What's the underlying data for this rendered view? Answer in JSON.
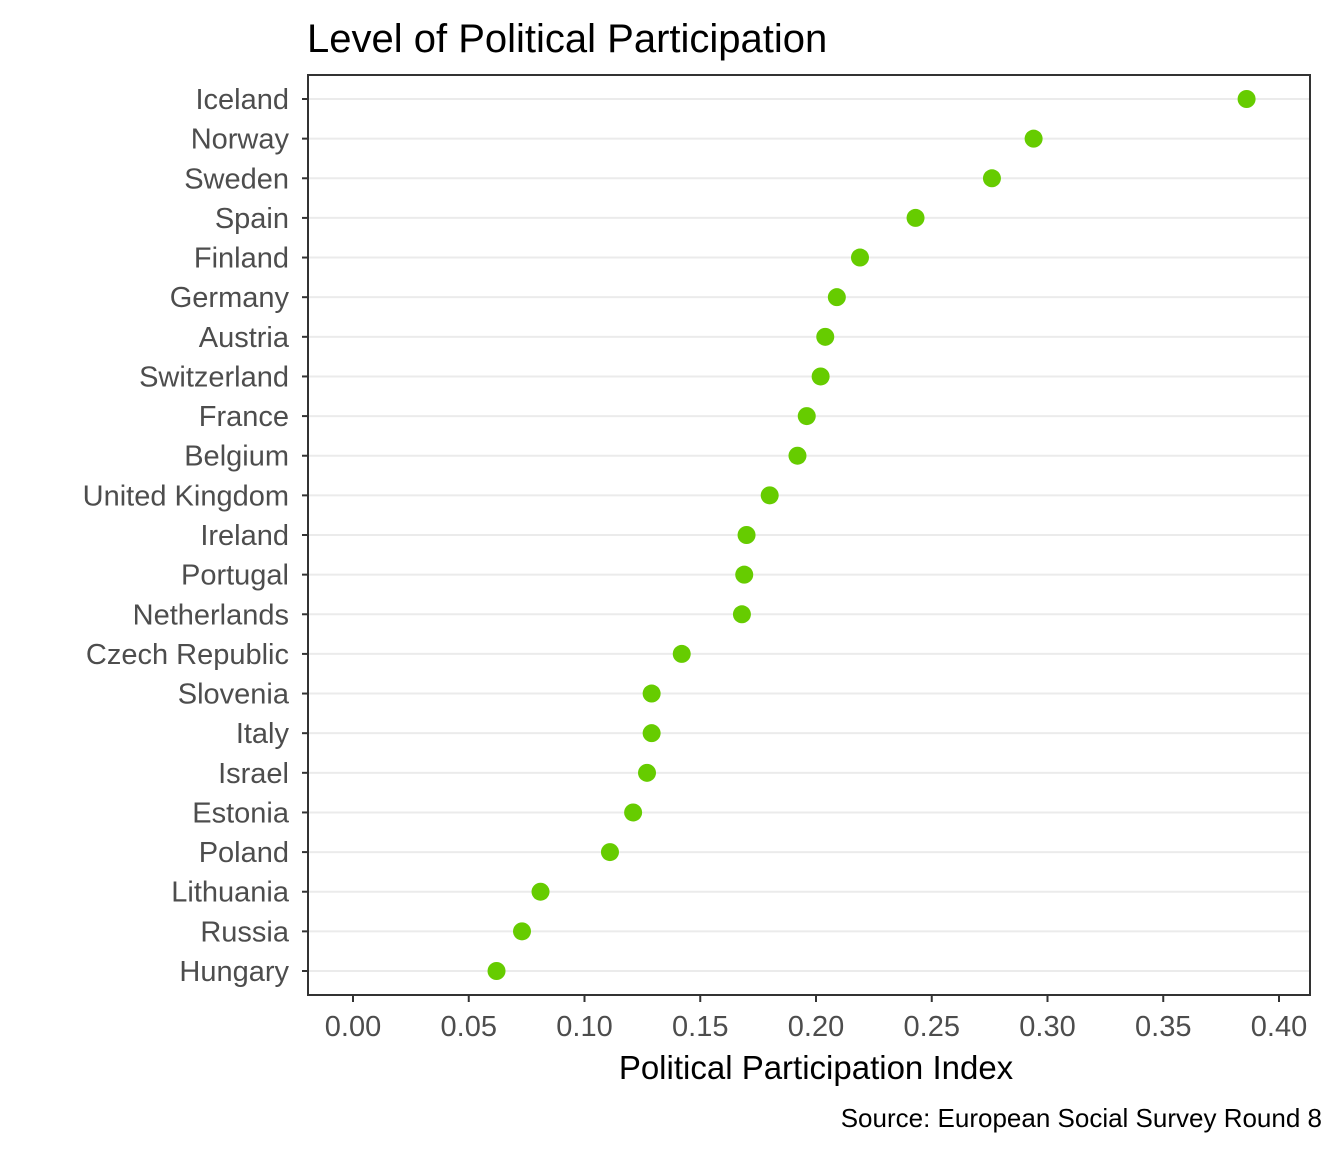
{
  "chart_data": {
    "type": "scatter",
    "title": "Level of Political Participation",
    "xlabel": "Political Participation Index",
    "ylabel": "",
    "caption": "Source: European Social Survey Round 8",
    "xlim": [
      -0.02,
      0.415
    ],
    "x_ticks": [
      0.0,
      0.05,
      0.1,
      0.15,
      0.2,
      0.25,
      0.3,
      0.35,
      0.4
    ],
    "x_tick_labels": [
      "0.00",
      "0.05",
      "0.10",
      "0.15",
      "0.20",
      "0.25",
      "0.30",
      "0.35",
      "0.40"
    ],
    "grid": "horizontal major",
    "point_color": "#66CC00",
    "points": [
      {
        "country": "Iceland",
        "value": 0.386
      },
      {
        "country": "Norway",
        "value": 0.294
      },
      {
        "country": "Sweden",
        "value": 0.276
      },
      {
        "country": "Spain",
        "value": 0.243
      },
      {
        "country": "Finland",
        "value": 0.219
      },
      {
        "country": "Germany",
        "value": 0.209
      },
      {
        "country": "Austria",
        "value": 0.204
      },
      {
        "country": "Switzerland",
        "value": 0.202
      },
      {
        "country": "France",
        "value": 0.196
      },
      {
        "country": "Belgium",
        "value": 0.192
      },
      {
        "country": "United Kingdom",
        "value": 0.18
      },
      {
        "country": "Ireland",
        "value": 0.17
      },
      {
        "country": "Portugal",
        "value": 0.169
      },
      {
        "country": "Netherlands",
        "value": 0.168
      },
      {
        "country": "Czech Republic",
        "value": 0.142
      },
      {
        "country": "Slovenia",
        "value": 0.129
      },
      {
        "country": "Italy",
        "value": 0.129
      },
      {
        "country": "Israel",
        "value": 0.127
      },
      {
        "country": "Estonia",
        "value": 0.121
      },
      {
        "country": "Poland",
        "value": 0.111
      },
      {
        "country": "Lithuania",
        "value": 0.081
      },
      {
        "country": "Russia",
        "value": 0.073
      },
      {
        "country": "Hungary",
        "value": 0.062
      }
    ]
  }
}
